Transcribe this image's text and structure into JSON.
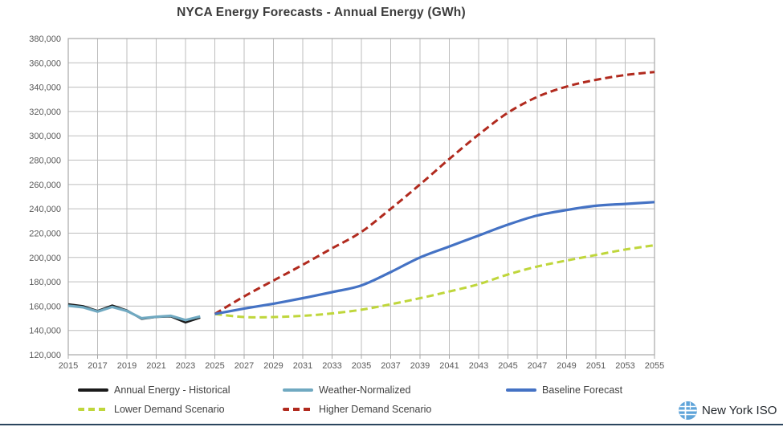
{
  "title": "NYCA Energy Forecasts - Annual Energy (GWh)",
  "footer": {
    "logo_text": "New York ISO"
  },
  "colors": {
    "historical": "#1a1a1a",
    "weather_normalized": "#70a9c1",
    "baseline": "#4472c4",
    "lower": "#bfd63b",
    "higher": "#b12a1e",
    "gridline": "#bdbdbd",
    "axis_frame": "#a8a8a8",
    "tick_label": "#595959",
    "title_text": "#3b3b3b",
    "legend_text": "#404040",
    "bottom_rule": "#2b455e",
    "logo_blue": "#5fa4d9"
  },
  "chart_data": {
    "type": "line",
    "title": "NYCA Energy Forecasts - Annual Energy (GWh)",
    "xlabel": "",
    "ylabel": "",
    "grid": true,
    "legend_position": "bottom",
    "x_axis": {
      "min": 2015,
      "max": 2055,
      "ticks": [
        2015,
        2017,
        2019,
        2021,
        2023,
        2025,
        2027,
        2029,
        2031,
        2033,
        2035,
        2037,
        2039,
        2041,
        2043,
        2045,
        2047,
        2049,
        2051,
        2053,
        2055
      ]
    },
    "y_axis": {
      "min": 120000,
      "max": 380000,
      "unit": "GWh",
      "ticks": [
        120000,
        140000,
        160000,
        180000,
        200000,
        220000,
        240000,
        260000,
        280000,
        300000,
        320000,
        340000,
        360000,
        380000
      ]
    },
    "series": [
      {
        "name": "Annual Energy - Historical",
        "color": "#1a1a1a",
        "style": "solid",
        "width": 2.6,
        "smooth": false,
        "years": [
          2015,
          2016,
          2017,
          2018,
          2019,
          2020,
          2021,
          2022,
          2023,
          2024
        ],
        "values": [
          161500,
          160000,
          156000,
          160500,
          156500,
          149500,
          151000,
          151500,
          146500,
          150500
        ]
      },
      {
        "name": "Weather-Normalized",
        "color": "#70a9c1",
        "style": "solid",
        "width": 3.2,
        "smooth": false,
        "years": [
          2015,
          2016,
          2017,
          2018,
          2019,
          2020,
          2021,
          2022,
          2023,
          2024
        ],
        "values": [
          160300,
          159000,
          155500,
          159300,
          156000,
          150000,
          151200,
          152000,
          148500,
          151500
        ]
      },
      {
        "name": "Baseline Forecast",
        "color": "#4472c4",
        "style": "solid",
        "width": 3.2,
        "smooth": true,
        "years": [
          2025,
          2027,
          2029,
          2031,
          2033,
          2035,
          2037,
          2039,
          2041,
          2043,
          2045,
          2047,
          2049,
          2051,
          2053,
          2055
        ],
        "values": [
          153500,
          158000,
          162000,
          166500,
          171500,
          177000,
          188000,
          200000,
          209000,
          218000,
          227000,
          234500,
          239000,
          242500,
          244000,
          245500
        ]
      },
      {
        "name": "Lower Demand Scenario",
        "color": "#bfd63b",
        "style": "dashed",
        "width": 3,
        "smooth": true,
        "years": [
          2025,
          2027,
          2029,
          2031,
          2033,
          2035,
          2037,
          2039,
          2041,
          2043,
          2045,
          2047,
          2049,
          2051,
          2053,
          2055
        ],
        "values": [
          153500,
          151000,
          151000,
          152000,
          154000,
          157000,
          161500,
          166500,
          172000,
          178000,
          186000,
          192500,
          197500,
          202000,
          206500,
          210000
        ]
      },
      {
        "name": "Higher Demand Scenario",
        "color": "#b12a1e",
        "style": "dashed",
        "width": 3,
        "smooth": true,
        "years": [
          2025,
          2027,
          2029,
          2031,
          2033,
          2035,
          2037,
          2039,
          2041,
          2043,
          2045,
          2047,
          2049,
          2051,
          2053,
          2055
        ],
        "values": [
          153500,
          168000,
          181000,
          194000,
          207500,
          221000,
          240000,
          260000,
          281000,
          301000,
          319000,
          332000,
          340500,
          346000,
          350000,
          352500
        ]
      }
    ]
  }
}
